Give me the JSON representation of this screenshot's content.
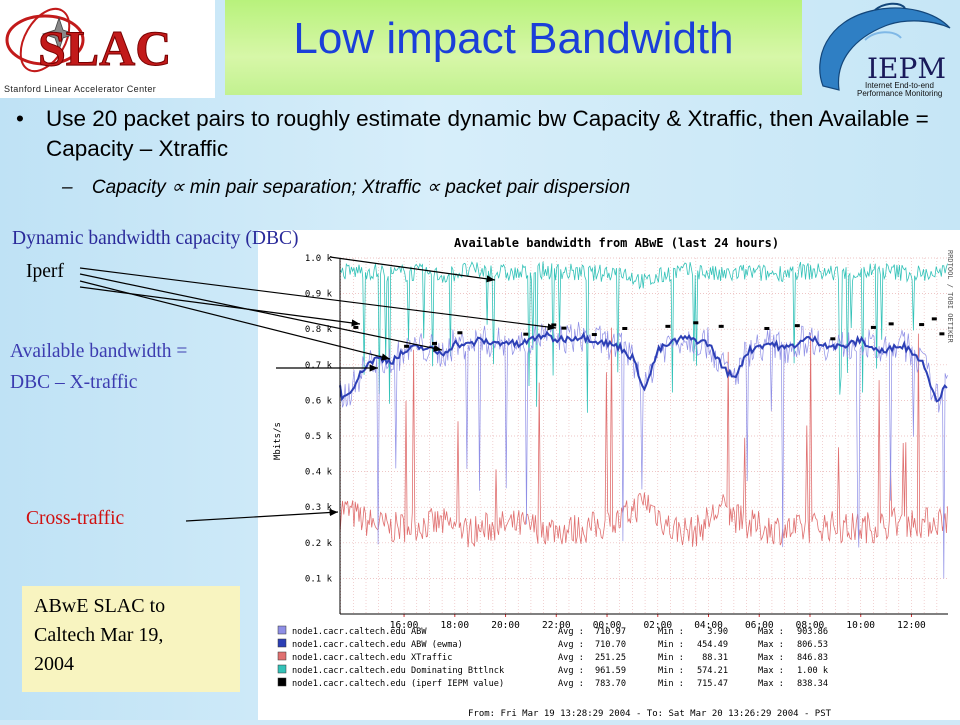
{
  "slide": {
    "title": "Low impact Bandwidth",
    "bullet": "Use 20 packet pairs to roughly estimate dynamic bw Capacity & Xtraffic, then Available = Capacity – Xtraffic",
    "sub_bullet": "Capacity ∝ min pair separation; Xtraffic ∝ packet pair dispersion",
    "sub_dash": "–"
  },
  "logos": {
    "slac_text": "SLAC",
    "slac_caption": "Stanford Linear Accelerator Center",
    "iepm_text": "IEPM",
    "iepm_caption_1": "Internet End-to-end",
    "iepm_caption_2": "Performance Monitoring"
  },
  "annotations": {
    "dbc": "Dynamic bandwidth capacity (DBC)",
    "dbc_bold": "bandwidth",
    "iperf": "Iperf",
    "avail_1": "Available bandwidth =",
    "avail_2": "DBC – X-traffic",
    "cross": "Cross-traffic",
    "note_1": "ABwE SLAC to",
    "note_2": "Caltech Mar 19,",
    "note_3": "2004"
  },
  "chart_data": {
    "type": "line",
    "title": "Available bandwidth from ABwE (last 24 hours)",
    "ylabel": "Mbits/s",
    "side_label": "RRDTOOL / TOBI OETIKER",
    "ylim": [
      0,
      1000
    ],
    "yticks": [
      "0.1 k",
      "0.2 k",
      "0.3 k",
      "0.4 k",
      "0.5 k",
      "0.6 k",
      "0.7 k",
      "0.8 k",
      "0.9 k",
      "1.0 k"
    ],
    "x_ticks": [
      "16:00",
      "18:00",
      "20:00",
      "22:00",
      "00:00",
      "02:00",
      "04:00",
      "06:00",
      "08:00",
      "10:00",
      "12:00"
    ],
    "x_hours_span": [
      13.475,
      37.44
    ],
    "x_tick_hours": [
      16,
      18,
      20,
      22,
      24,
      26,
      28,
      30,
      32,
      34,
      36
    ],
    "series": [
      {
        "name": "node1.cacr.caltech.edu ABW",
        "color": "#8f8fe6",
        "avg": "710.97",
        "min": "3.90",
        "max": "903.86"
      },
      {
        "name": "node1.cacr.caltech.edu ABW (ewma)",
        "color": "#2c3fb5",
        "avg": "710.70",
        "min": "454.49",
        "max": "806.53"
      },
      {
        "name": "node1.cacr.caltech.edu XTraffic",
        "color": "#e07070",
        "avg": "251.25",
        "min": "88.31",
        "max": "846.83"
      },
      {
        "name": "node1.cacr.caltech.edu Dominating Bttlnck",
        "color": "#33c2b8",
        "avg": "961.59",
        "min": "574.21",
        "max": "1.00 k"
      },
      {
        "name": "node1.cacr.caltech.edu (iperf IEPM value)",
        "color": "#000000",
        "avg": "783.70",
        "min": "715.47",
        "max": "838.34"
      }
    ],
    "ewma_points": [
      [
        13.5,
        600
      ],
      [
        14,
        640
      ],
      [
        14.5,
        700
      ],
      [
        15,
        720
      ],
      [
        15.5,
        710
      ],
      [
        16,
        735
      ],
      [
        16.5,
        750
      ],
      [
        17,
        745
      ],
      [
        17.5,
        730
      ],
      [
        18,
        760
      ],
      [
        18.5,
        755
      ],
      [
        19,
        770
      ],
      [
        19.5,
        760
      ],
      [
        20,
        765
      ],
      [
        20.5,
        755
      ],
      [
        21,
        770
      ],
      [
        21.5,
        785
      ],
      [
        22,
        770
      ],
      [
        22.5,
        775
      ],
      [
        23,
        780
      ],
      [
        23.5,
        770
      ],
      [
        24,
        760
      ],
      [
        24.5,
        750
      ],
      [
        25,
        720
      ],
      [
        25.5,
        630
      ],
      [
        26,
        740
      ],
      [
        26.5,
        760
      ],
      [
        27,
        775
      ],
      [
        27.5,
        770
      ],
      [
        28,
        760
      ],
      [
        28.5,
        700
      ],
      [
        29,
        660
      ],
      [
        29.5,
        735
      ],
      [
        30,
        755
      ],
      [
        30.5,
        760
      ],
      [
        31,
        745
      ],
      [
        31.5,
        760
      ],
      [
        32,
        775
      ],
      [
        32.5,
        760
      ],
      [
        33,
        750
      ],
      [
        33.5,
        755
      ],
      [
        34,
        770
      ],
      [
        34.5,
        745
      ],
      [
        35,
        735
      ],
      [
        35.5,
        760
      ],
      [
        36,
        740
      ],
      [
        36.5,
        700
      ],
      [
        37,
        600
      ],
      [
        37.44,
        650
      ]
    ],
    "dbc_points": [
      [
        13.5,
        960
      ],
      [
        14.5,
        965
      ],
      [
        15.5,
        955
      ],
      [
        16.5,
        960
      ],
      [
        17.5,
        950
      ],
      [
        18.5,
        965
      ],
      [
        19.5,
        960
      ],
      [
        20.5,
        955
      ],
      [
        21.5,
        965
      ],
      [
        22.5,
        960
      ],
      [
        23.5,
        955
      ],
      [
        24.5,
        965
      ],
      [
        25.5,
        930
      ],
      [
        26.5,
        960
      ],
      [
        27.5,
        965
      ],
      [
        28.5,
        950
      ],
      [
        29.5,
        960
      ],
      [
        30.5,
        955
      ],
      [
        31.5,
        965
      ],
      [
        32.5,
        960
      ],
      [
        33.5,
        955
      ],
      [
        34.5,
        965
      ],
      [
        35.5,
        960
      ],
      [
        36.5,
        955
      ],
      [
        37.44,
        960
      ]
    ],
    "xtraffic_points": [
      [
        13.5,
        300
      ],
      [
        14.5,
        260
      ],
      [
        15.5,
        240
      ],
      [
        16.5,
        250
      ],
      [
        17.5,
        255
      ],
      [
        18.5,
        230
      ],
      [
        19.5,
        245
      ],
      [
        20.5,
        250
      ],
      [
        21.5,
        240
      ],
      [
        22.5,
        235
      ],
      [
        23.5,
        245
      ],
      [
        24.5,
        260
      ],
      [
        25.5,
        320
      ],
      [
        26.5,
        240
      ],
      [
        27.5,
        230
      ],
      [
        28.5,
        300
      ],
      [
        29.5,
        250
      ],
      [
        30.5,
        240
      ],
      [
        31.5,
        235
      ],
      [
        32.5,
        250
      ],
      [
        33.5,
        240
      ],
      [
        34.5,
        245
      ],
      [
        35.5,
        260
      ],
      [
        36.5,
        255
      ],
      [
        37.44,
        270
      ]
    ],
    "iperf_points": [
      [
        14.1,
        805
      ],
      [
        16.1,
        752
      ],
      [
        17.2,
        760
      ],
      [
        18.2,
        790
      ],
      [
        20.8,
        786
      ],
      [
        21.9,
        812
      ],
      [
        22.3,
        803
      ],
      [
        23.5,
        785
      ],
      [
        24.7,
        802
      ],
      [
        26.4,
        808
      ],
      [
        27.5,
        818
      ],
      [
        28.5,
        808
      ],
      [
        30.3,
        802
      ],
      [
        31.5,
        810
      ],
      [
        32.9,
        773
      ],
      [
        34.5,
        805
      ],
      [
        35.2,
        815
      ],
      [
        36.4,
        813
      ],
      [
        36.9,
        829
      ],
      [
        37.2,
        787
      ]
    ],
    "footer": "From: Fri Mar 19 13:28:29 2004 - To: Sat Mar 20 13:26:29 2004 - PST",
    "stat_labels": {
      "avg": "Avg :",
      "min": "Min :",
      "max": "Max :"
    }
  }
}
